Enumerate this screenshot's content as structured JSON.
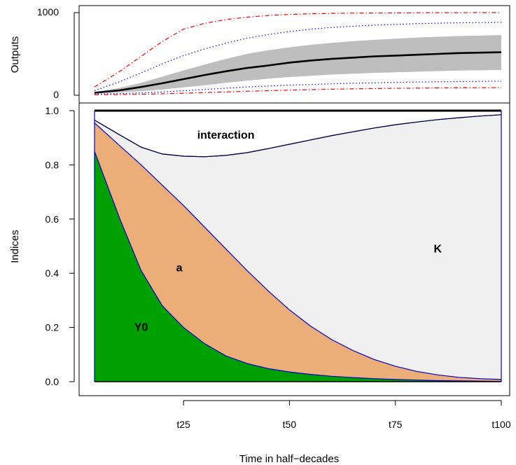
{
  "chart_data": [
    {
      "type": "line",
      "panel": "top",
      "ylabel": "Outputs",
      "xlabel": "",
      "ylim": [
        0,
        1000
      ],
      "yticks": [
        0,
        1000
      ],
      "x": [
        4,
        10,
        15,
        20,
        25,
        30,
        35,
        40,
        45,
        50,
        55,
        60,
        65,
        70,
        75,
        80,
        85,
        90,
        95,
        100
      ],
      "series": [
        {
          "role": "mean",
          "color": "#000000",
          "style": "solid",
          "values": [
            30,
            60,
            100,
            145,
            195,
            245,
            290,
            330,
            360,
            395,
            420,
            440,
            455,
            470,
            480,
            490,
            500,
            510,
            515,
            520
          ]
        },
        {
          "role": "band_lower",
          "color": "#bebebe",
          "style": "fill",
          "values": [
            25,
            35,
            50,
            70,
            95,
            120,
            150,
            175,
            200,
            220,
            235,
            250,
            260,
            270,
            278,
            285,
            292,
            298,
            302,
            306
          ]
        },
        {
          "role": "band_upper",
          "color": "#bebebe",
          "style": "fill",
          "values": [
            40,
            90,
            150,
            225,
            300,
            370,
            440,
            500,
            545,
            580,
            610,
            635,
            655,
            670,
            685,
            698,
            708,
            716,
            722,
            728
          ]
        },
        {
          "role": "inner_lower",
          "color": "#0000ff",
          "style": "dotted",
          "values": [
            15,
            20,
            28,
            40,
            55,
            70,
            85,
            100,
            112,
            122,
            130,
            138,
            145,
            150,
            155,
            160,
            163,
            166,
            168,
            170
          ]
        },
        {
          "role": "inner_upper",
          "color": "#0000ff",
          "style": "dotted",
          "values": [
            55,
            165,
            270,
            380,
            480,
            560,
            630,
            690,
            735,
            770,
            800,
            820,
            835,
            848,
            858,
            866,
            872,
            877,
            880,
            882
          ]
        },
        {
          "role": "outer_lower",
          "color": "#ff0000",
          "style": "dotdash",
          "values": [
            5,
            8,
            12,
            18,
            25,
            32,
            40,
            48,
            55,
            62,
            68,
            73,
            77,
            81,
            84,
            86,
            88,
            90,
            91,
            92
          ]
        },
        {
          "role": "outer_upper",
          "color": "#ff0000",
          "style": "dotdash",
          "values": [
            100,
            290,
            470,
            650,
            800,
            870,
            915,
            945,
            965,
            978,
            986,
            991,
            994,
            996,
            997,
            998,
            999,
            999,
            1000,
            1000
          ]
        }
      ]
    },
    {
      "type": "area",
      "panel": "bottom",
      "ylabel": "Indices",
      "xlabel": "Time in half−decades",
      "ylim": [
        0,
        1
      ],
      "yticks": [
        0,
        0.2,
        0.4,
        0.6,
        0.8,
        1
      ],
      "ytick_labels": [
        "0.0",
        "0.2",
        "0.4",
        "0.6",
        "0.8",
        "1.0"
      ],
      "xticks": [
        25,
        50,
        75,
        100
      ],
      "xtick_labels": [
        "t25",
        "t50",
        "t75",
        "t100"
      ],
      "x": [
        4,
        10,
        15,
        20,
        25,
        30,
        35,
        40,
        45,
        50,
        55,
        60,
        65,
        70,
        75,
        80,
        85,
        90,
        95,
        100
      ],
      "stack_top": 1.0,
      "series": [
        {
          "name": "Y0",
          "color": "#00a000",
          "cumulative": [
            0.85,
            0.6,
            0.41,
            0.28,
            0.2,
            0.14,
            0.095,
            0.067,
            0.048,
            0.036,
            0.027,
            0.02,
            0.015,
            0.011,
            0.008,
            0.006,
            0.004,
            0.003,
            0.002,
            0.001
          ]
        },
        {
          "name": "a",
          "color": "#ebae78",
          "cumulative": [
            0.955,
            0.87,
            0.8,
            0.725,
            0.65,
            0.57,
            0.49,
            0.41,
            0.335,
            0.265,
            0.205,
            0.155,
            0.115,
            0.082,
            0.057,
            0.038,
            0.025,
            0.016,
            0.011,
            0.008
          ]
        },
        {
          "name": "K",
          "color": "#f0f0f0",
          "cumulative": [
            0.965,
            0.91,
            0.865,
            0.84,
            0.832,
            0.83,
            0.835,
            0.845,
            0.86,
            0.876,
            0.892,
            0.908,
            0.922,
            0.936,
            0.948,
            0.958,
            0.967,
            0.974,
            0.98,
            0.985
          ]
        },
        {
          "name": "interaction",
          "color": "#ffffff",
          "cumulative": [
            1,
            1,
            1,
            1,
            1,
            1,
            1,
            1,
            1,
            1,
            1,
            1,
            1,
            1,
            1,
            1,
            1,
            1,
            1,
            1
          ]
        }
      ],
      "labels": [
        {
          "text": "interaction",
          "x": 35,
          "y": 0.91
        },
        {
          "text": "a",
          "x": 24,
          "y": 0.42
        },
        {
          "text": "K",
          "x": 85,
          "y": 0.49
        },
        {
          "text": "Y0",
          "x": 15,
          "y": 0.2
        }
      ]
    }
  ]
}
